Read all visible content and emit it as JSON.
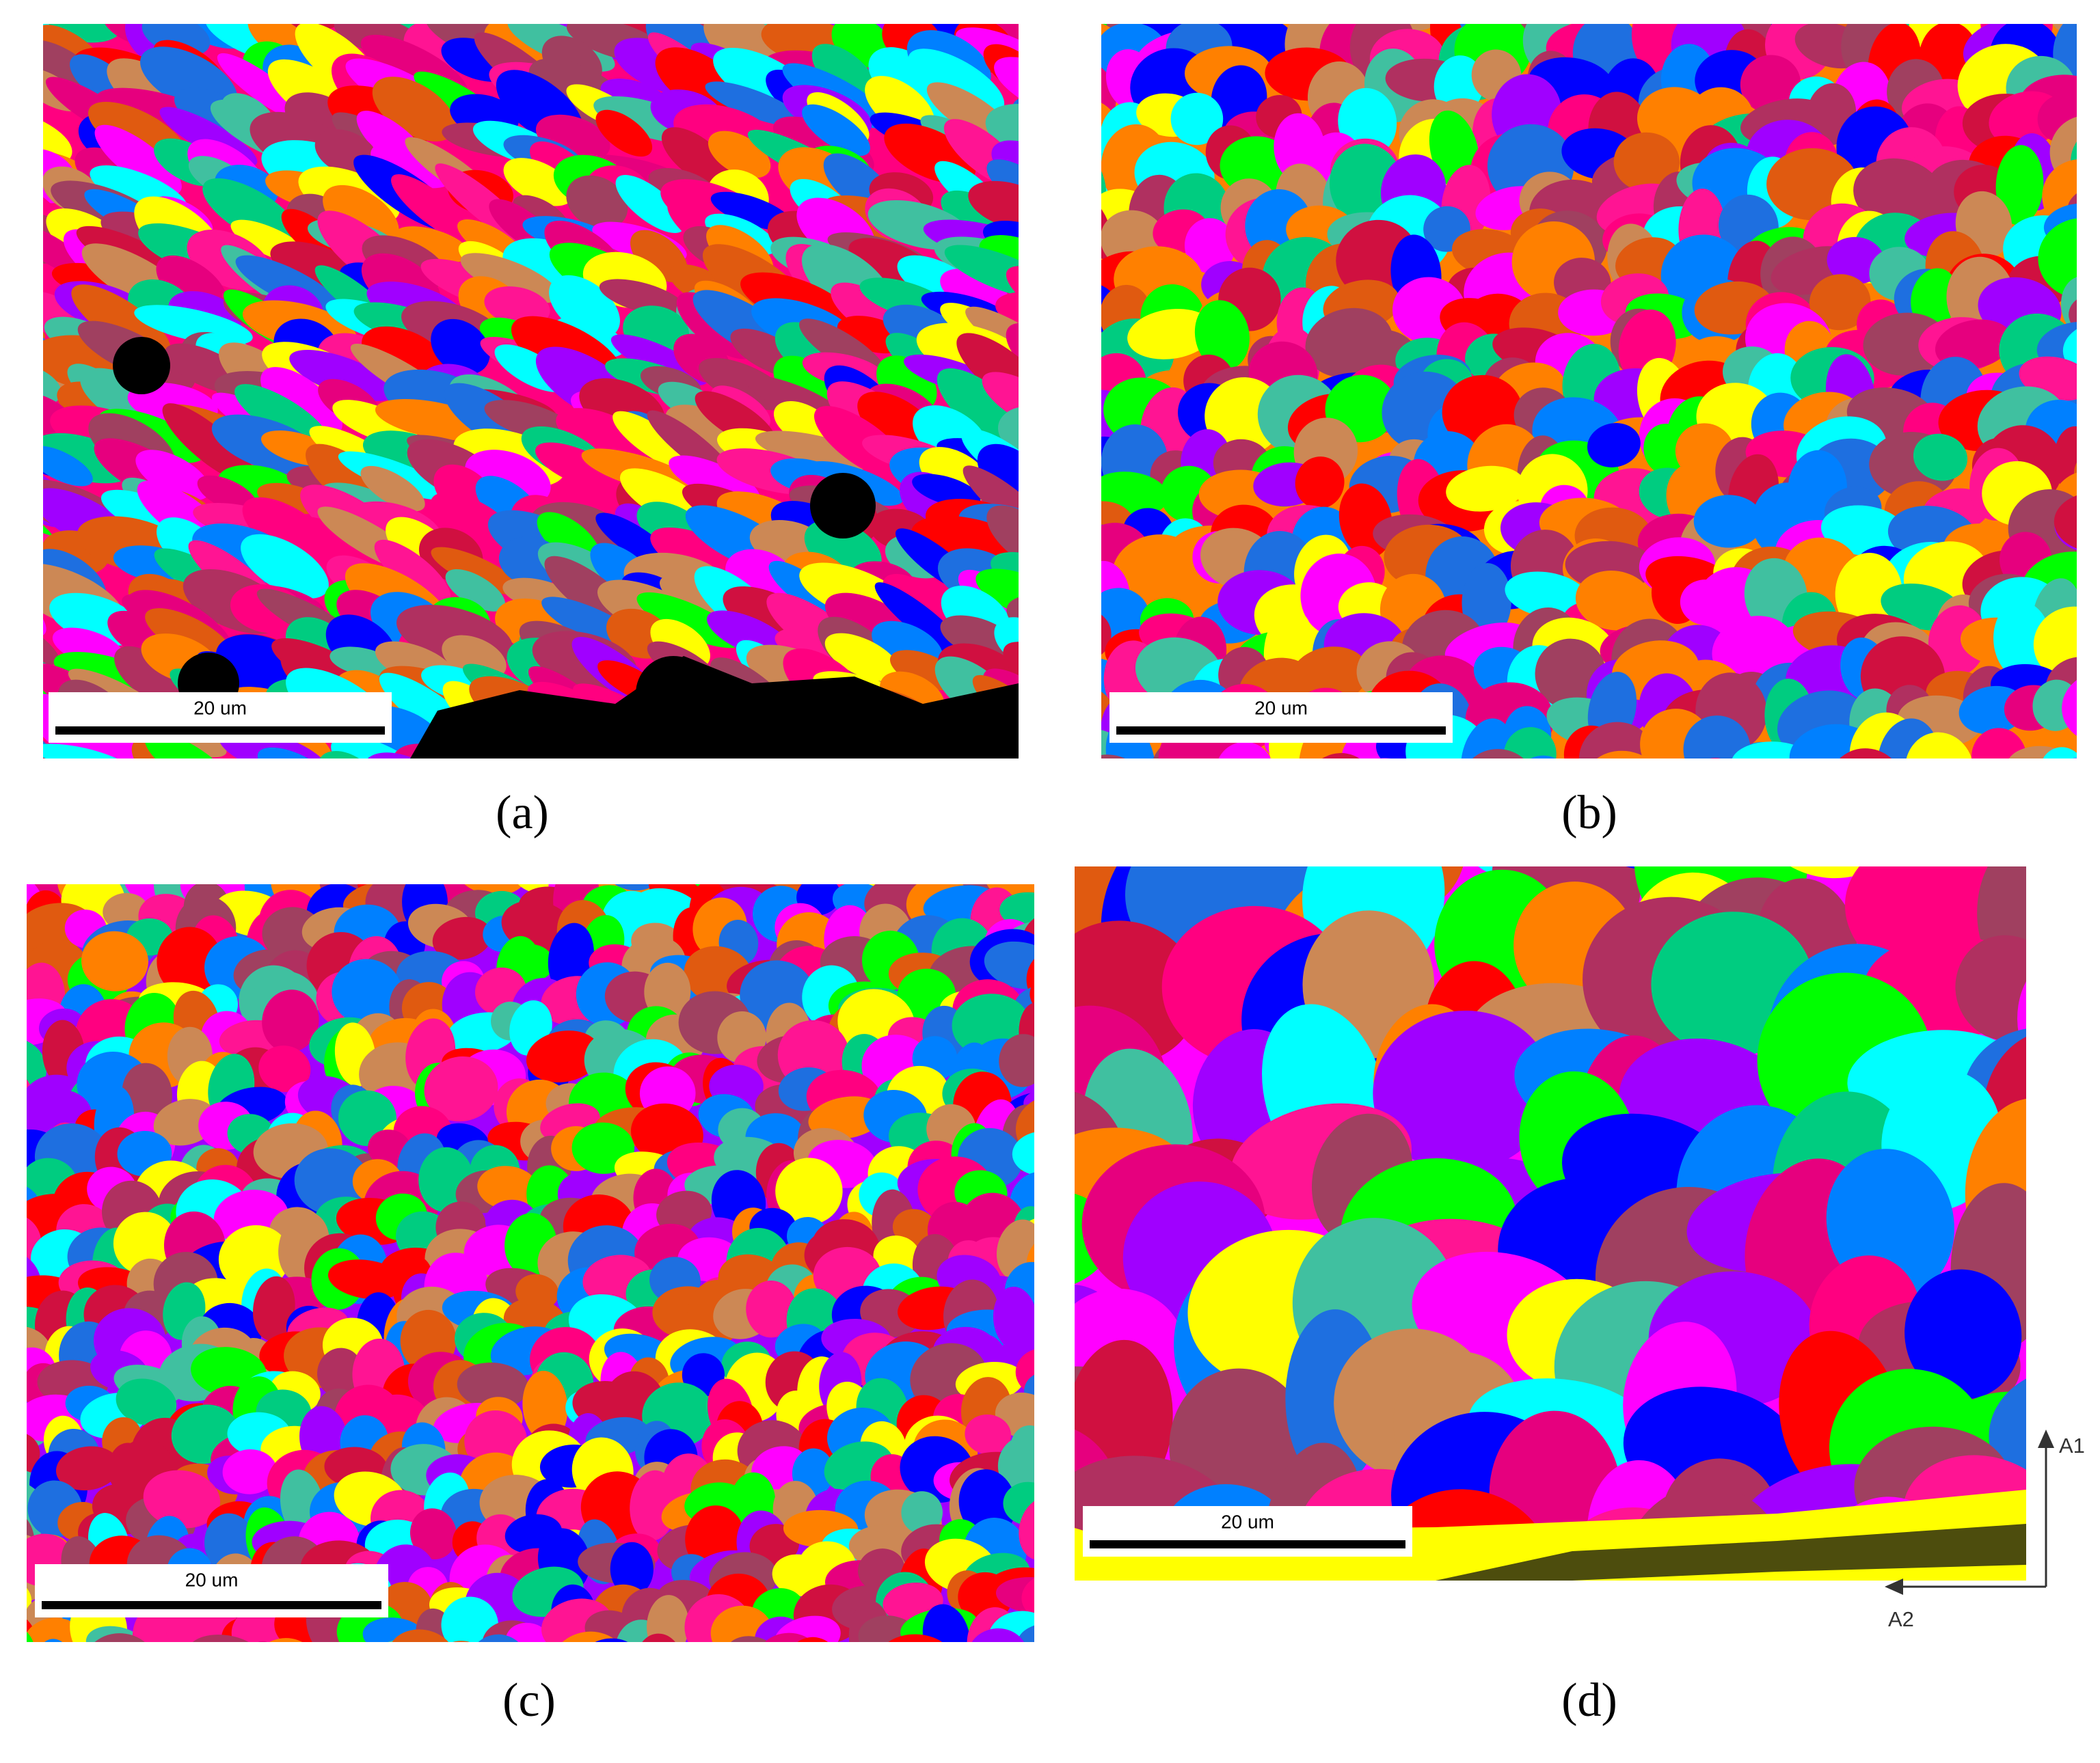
{
  "panels": [
    {
      "label": "(a)",
      "scale_bar": "20 um"
    },
    {
      "label": "(b)",
      "scale_bar": "20 um"
    },
    {
      "label": "(c)",
      "scale_bar": "20 um"
    },
    {
      "label": "(d)",
      "scale_bar": "20 um"
    }
  ],
  "axes": {
    "vertical": "A1",
    "horizontal": "A2"
  }
}
